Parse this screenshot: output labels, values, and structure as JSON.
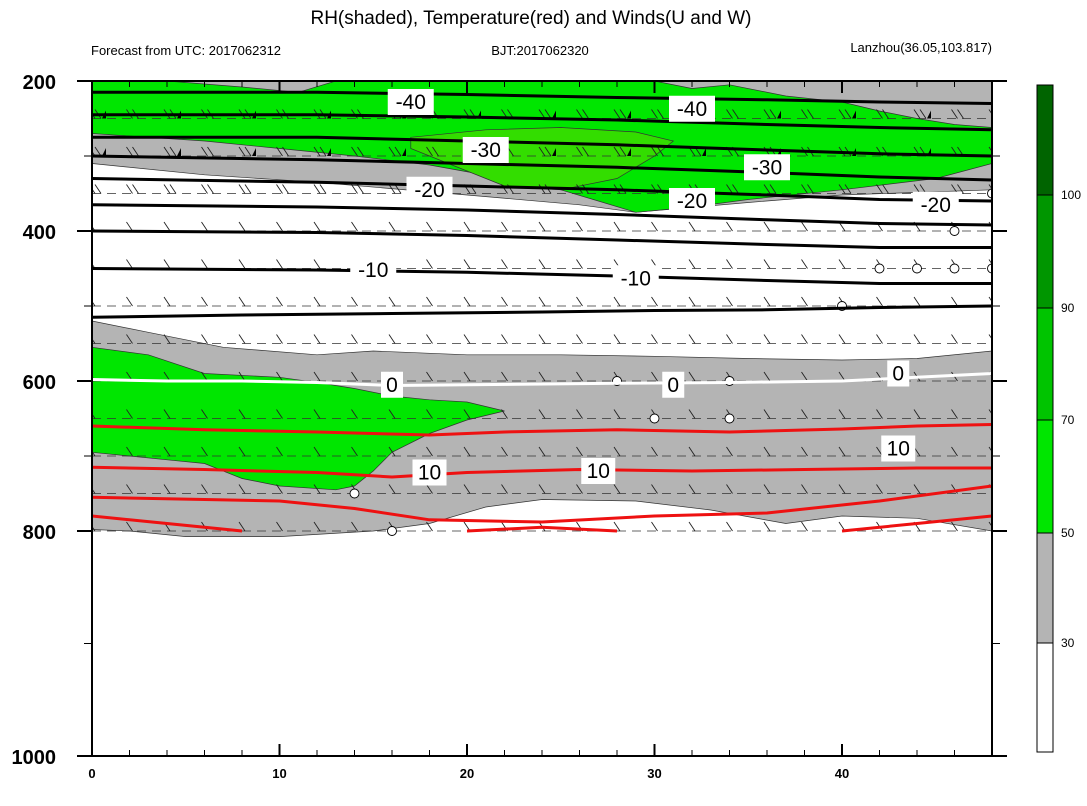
{
  "chart_data": {
    "type": "heatmap",
    "title": "RH(shaded), Temperature(red) and Winds(U and W)",
    "subtitle_left": "Forecast from UTC: 2017062312",
    "subtitle_center": "BJT:2017062320",
    "subtitle_right": "Lanzhou(36.05,103.817)",
    "xlabel": "",
    "ylabel": "",
    "xlim": [
      0,
      48
    ],
    "ylim": [
      1000,
      200
    ],
    "y_axis": "pressure (hPa), inverted, log-like",
    "x_ticks": [
      "0",
      "10",
      "20",
      "30",
      "40"
    ],
    "x_tick_values": [
      0,
      10,
      20,
      30,
      40
    ],
    "y_ticks": [
      "200",
      "400",
      "600",
      "800",
      "1000"
    ],
    "y_tick_values": [
      200,
      400,
      600,
      800,
      1000
    ],
    "colorbar": {
      "labels": [
        "30",
        "50",
        "70",
        "90",
        "100"
      ],
      "levels": [
        30,
        50,
        70,
        90,
        100
      ],
      "colors": [
        "#ffffff",
        "#b4b4b4",
        "#00e600",
        "#00c400",
        "#009600",
        "#006400"
      ]
    },
    "rh_regions": [
      {
        "level": 30,
        "color": "#b4b4b4",
        "points": [
          [
            0,
            200
          ],
          [
            48,
            200
          ],
          [
            48,
            345
          ],
          [
            40,
            352
          ],
          [
            35,
            362
          ],
          [
            29,
            375
          ],
          [
            26,
            365
          ],
          [
            20,
            352
          ],
          [
            12,
            335
          ],
          [
            6,
            325
          ],
          [
            0,
            310
          ]
        ]
      },
      {
        "level": 50,
        "color": "#00e600",
        "points": [
          [
            0,
            200
          ],
          [
            4,
            200
          ],
          [
            8,
            208
          ],
          [
            11,
            215
          ],
          [
            13,
            200
          ],
          [
            30,
            200
          ],
          [
            32,
            210
          ],
          [
            34,
            205
          ],
          [
            37,
            220
          ],
          [
            40,
            228
          ],
          [
            42,
            240
          ],
          [
            44,
            250
          ],
          [
            46,
            258
          ],
          [
            48,
            262
          ],
          [
            48,
            310
          ],
          [
            45,
            330
          ],
          [
            40,
            345
          ],
          [
            35,
            358
          ],
          [
            32,
            368
          ],
          [
            29,
            375
          ],
          [
            27,
            360
          ],
          [
            25,
            345
          ],
          [
            22,
            330
          ],
          [
            18,
            312
          ],
          [
            14,
            300
          ],
          [
            10,
            290
          ],
          [
            6,
            280
          ],
          [
            3,
            275
          ],
          [
            0,
            270
          ]
        ]
      },
      {
        "level": 70,
        "color": "#33dd00",
        "points": [
          [
            17,
            275
          ],
          [
            21,
            265
          ],
          [
            25,
            262
          ],
          [
            29,
            268
          ],
          [
            31,
            280
          ],
          [
            30,
            300
          ],
          [
            28,
            330
          ],
          [
            25,
            345
          ],
          [
            22,
            340
          ],
          [
            19,
            310
          ],
          [
            17,
            290
          ]
        ]
      },
      {
        "level": 30,
        "color": "#b4b4b4",
        "points": [
          [
            0,
            520
          ],
          [
            3,
            535
          ],
          [
            7,
            555
          ],
          [
            12,
            565
          ],
          [
            15,
            560
          ],
          [
            20,
            565
          ],
          [
            25,
            565
          ],
          [
            30,
            567
          ],
          [
            35,
            570
          ],
          [
            40,
            572
          ],
          [
            44,
            570
          ],
          [
            48,
            560
          ],
          [
            48,
            800
          ],
          [
            44,
            783
          ],
          [
            40,
            780
          ],
          [
            37,
            790
          ],
          [
            33,
            772
          ],
          [
            29,
            760
          ],
          [
            24,
            758
          ],
          [
            21,
            768
          ],
          [
            18,
            790
          ],
          [
            15,
            800
          ],
          [
            10,
            805
          ],
          [
            5,
            805
          ],
          [
            2,
            800
          ],
          [
            0,
            798
          ]
        ]
      },
      {
        "level": 50,
        "color": "#00e600",
        "points": [
          [
            0,
            555
          ],
          [
            3,
            565
          ],
          [
            6,
            590
          ],
          [
            10,
            595
          ],
          [
            12,
            602
          ],
          [
            14,
            610
          ],
          [
            16,
            620
          ],
          [
            18,
            625
          ],
          [
            20,
            628
          ],
          [
            22,
            640
          ],
          [
            20,
            652
          ],
          [
            18,
            670
          ],
          [
            16,
            695
          ],
          [
            15,
            720
          ],
          [
            14,
            740
          ],
          [
            13,
            745
          ],
          [
            10,
            740
          ],
          [
            8,
            730
          ],
          [
            6,
            710
          ],
          [
            4,
            705
          ],
          [
            2,
            700
          ],
          [
            0,
            695
          ]
        ]
      }
    ],
    "temperature_contours": [
      {
        "label": "-40",
        "color": "black",
        "points": [
          [
            0,
            215
          ],
          [
            12,
            215
          ],
          [
            20,
            218
          ],
          [
            28,
            222
          ],
          [
            36,
            225
          ],
          [
            42,
            228
          ],
          [
            48,
            230
          ]
        ]
      },
      {
        "label": "-40",
        "color": "black",
        "points": [
          [
            0,
            245
          ],
          [
            12,
            245
          ],
          [
            20,
            248
          ],
          [
            28,
            252
          ],
          [
            36,
            258
          ],
          [
            42,
            262
          ],
          [
            48,
            265
          ]
        ]
      },
      {
        "label": "-30",
        "color": "black",
        "points": [
          [
            0,
            275
          ],
          [
            12,
            275
          ],
          [
            20,
            280
          ],
          [
            28,
            285
          ],
          [
            36,
            292
          ],
          [
            42,
            297
          ],
          [
            48,
            300
          ]
        ]
      },
      {
        "label": "-30",
        "color": "black",
        "points": [
          [
            0,
            300
          ],
          [
            12,
            305
          ],
          [
            20,
            310
          ],
          [
            28,
            315
          ],
          [
            36,
            322
          ],
          [
            42,
            328
          ],
          [
            48,
            332
          ]
        ]
      },
      {
        "label": "-20",
        "color": "black",
        "points": [
          [
            0,
            330
          ],
          [
            12,
            335
          ],
          [
            20,
            340
          ],
          [
            28,
            345
          ],
          [
            36,
            352
          ],
          [
            42,
            358
          ],
          [
            48,
            360
          ]
        ]
      },
      {
        "label": "-20",
        "color": "black",
        "points": [
          [
            0,
            365
          ],
          [
            12,
            368
          ],
          [
            20,
            372
          ],
          [
            28,
            378
          ],
          [
            36,
            385
          ],
          [
            42,
            390
          ],
          [
            48,
            392
          ]
        ]
      },
      {
        "label": "-10",
        "color": "black",
        "points": [
          [
            0,
            400
          ],
          [
            12,
            402
          ],
          [
            20,
            406
          ],
          [
            28,
            412
          ],
          [
            36,
            418
          ],
          [
            42,
            422
          ],
          [
            48,
            422
          ]
        ]
      },
      {
        "label": "-10",
        "color": "black",
        "points": [
          [
            0,
            450
          ],
          [
            12,
            452
          ],
          [
            20,
            455
          ],
          [
            28,
            460
          ],
          [
            36,
            466
          ],
          [
            42,
            470
          ],
          [
            48,
            470
          ]
        ]
      },
      {
        "label": "",
        "color": "black",
        "points": [
          [
            0,
            515
          ],
          [
            8,
            512
          ],
          [
            16,
            510
          ],
          [
            24,
            508
          ],
          [
            30,
            506
          ],
          [
            36,
            505
          ],
          [
            42,
            502
          ],
          [
            48,
            500
          ]
        ]
      },
      {
        "label": "0",
        "color": "white",
        "points": [
          [
            0,
            598
          ],
          [
            4,
            600
          ],
          [
            8,
            600
          ],
          [
            12,
            602
          ],
          [
            16,
            606
          ],
          [
            20,
            605
          ],
          [
            28,
            603
          ],
          [
            34,
            602
          ],
          [
            40,
            600
          ],
          [
            48,
            590
          ]
        ]
      },
      {
        "label": "",
        "color": "red",
        "points": [
          [
            0,
            660
          ],
          [
            6,
            665
          ],
          [
            12,
            668
          ],
          [
            18,
            672
          ],
          [
            22,
            668
          ],
          [
            28,
            665
          ],
          [
            34,
            668
          ],
          [
            40,
            664
          ],
          [
            44,
            660
          ],
          [
            48,
            658
          ]
        ]
      },
      {
        "label": "10",
        "color": "red",
        "points": [
          [
            0,
            715
          ],
          [
            6,
            718
          ],
          [
            12,
            722
          ],
          [
            16,
            728
          ],
          [
            20,
            722
          ],
          [
            26,
            718
          ],
          [
            32,
            720
          ],
          [
            38,
            718
          ],
          [
            44,
            716
          ],
          [
            48,
            716
          ]
        ]
      },
      {
        "label": "",
        "color": "red",
        "points": [
          [
            0,
            755
          ],
          [
            6,
            758
          ],
          [
            10,
            760
          ],
          [
            14,
            770
          ],
          [
            18,
            785
          ],
          [
            24,
            788
          ],
          [
            30,
            780
          ],
          [
            36,
            776
          ],
          [
            42,
            760
          ],
          [
            48,
            740
          ]
        ]
      },
      {
        "label": "",
        "color": "red",
        "points": [
          [
            0,
            780
          ],
          [
            4,
            790
          ],
          [
            8,
            800
          ]
        ]
      },
      {
        "label": "",
        "color": "red",
        "points": [
          [
            20,
            800
          ],
          [
            24,
            795
          ],
          [
            28,
            800
          ]
        ]
      },
      {
        "label": "",
        "color": "red",
        "points": [
          [
            40,
            800
          ],
          [
            44,
            790
          ],
          [
            48,
            780
          ]
        ]
      }
    ],
    "contour_labels": [
      {
        "text": "-40",
        "x": 17,
        "y": 228
      },
      {
        "text": "-40",
        "x": 32,
        "y": 237
      },
      {
        "text": "-30",
        "x": 21,
        "y": 292
      },
      {
        "text": "-30",
        "x": 36,
        "y": 315
      },
      {
        "text": "-20",
        "x": 18,
        "y": 345
      },
      {
        "text": "-20",
        "x": 32,
        "y": 360
      },
      {
        "text": "-20",
        "x": 45,
        "y": 365
      },
      {
        "text": "-10",
        "x": 15,
        "y": 452
      },
      {
        "text": "-10",
        "x": 29,
        "y": 463
      },
      {
        "text": "0",
        "x": 16,
        "y": 605
      },
      {
        "text": "0",
        "x": 31,
        "y": 605
      },
      {
        "text": "0",
        "x": 43,
        "y": 590
      },
      {
        "text": "10",
        "x": 18,
        "y": 722
      },
      {
        "text": "10",
        "x": 27,
        "y": 720
      },
      {
        "text": "10",
        "x": 43,
        "y": 690
      }
    ],
    "calm_markers": [
      [
        14,
        750
      ],
      [
        16,
        800
      ],
      [
        28,
        600
      ],
      [
        30,
        650
      ],
      [
        34,
        600
      ],
      [
        34,
        650
      ],
      [
        40,
        500
      ],
      [
        42,
        450
      ],
      [
        44,
        450
      ],
      [
        46,
        450
      ],
      [
        46,
        400
      ],
      [
        48,
        450
      ],
      [
        48,
        350
      ]
    ],
    "wind_levels": [
      200,
      250,
      300,
      350,
      400,
      450,
      500,
      550,
      600,
      650,
      700,
      750,
      800
    ],
    "wind_times": [
      0,
      2,
      4,
      6,
      8,
      10,
      12,
      14,
      16,
      18,
      20,
      22,
      24,
      26,
      28,
      30,
      32,
      34,
      36,
      38,
      40,
      42,
      44,
      46,
      48
    ]
  }
}
